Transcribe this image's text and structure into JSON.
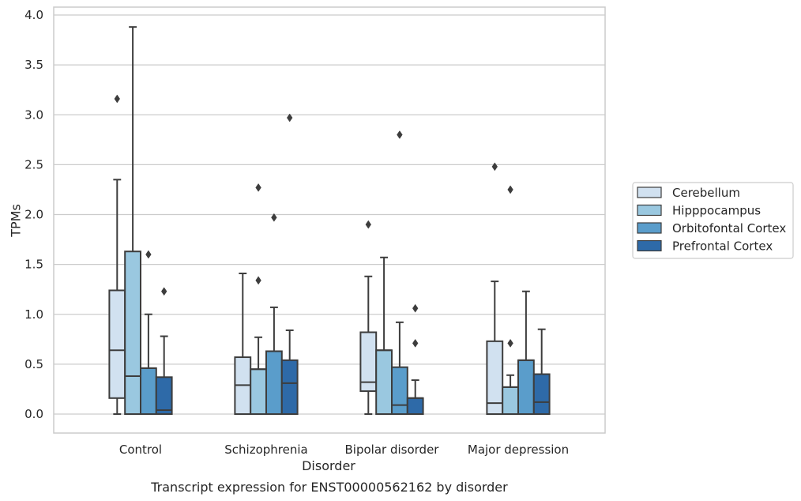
{
  "chart_data": {
    "type": "box",
    "title": "",
    "caption": "Transcript expression for ENST00000562162 by disorder",
    "xlabel": "Disorder",
    "ylabel": "TPMs",
    "ylim": [
      -0.19,
      4.07
    ],
    "yticks": [
      0.0,
      0.5,
      1.0,
      1.5,
      2.0,
      2.5,
      3.0,
      3.5,
      4.0
    ],
    "ytick_labels": [
      "0.0",
      "0.5",
      "1.0",
      "1.5",
      "2.0",
      "2.5",
      "3.0",
      "3.5",
      "4.0"
    ],
    "grid": "horizontal",
    "legend_position": "right",
    "categories": [
      "Control",
      "Schizophrenia",
      "Bipolar disorder",
      "Major depression"
    ],
    "series": [
      {
        "name": "Cerebellum",
        "color": "#d1e1f0",
        "boxes": [
          {
            "whisker_low": 0.0,
            "q1": 0.16,
            "median": 0.64,
            "q3": 1.24,
            "whisker_high": 2.35,
            "outliers": [
              3.16
            ]
          },
          {
            "whisker_low": 0.0,
            "q1": 0.0,
            "median": 0.29,
            "q3": 0.57,
            "whisker_high": 1.41,
            "outliers": []
          },
          {
            "whisker_low": 0.0,
            "q1": 0.23,
            "median": 0.32,
            "q3": 0.82,
            "whisker_high": 1.38,
            "outliers": [
              1.9
            ]
          },
          {
            "whisker_low": 0.0,
            "q1": 0.0,
            "median": 0.11,
            "q3": 0.73,
            "whisker_high": 1.33,
            "outliers": [
              2.48
            ]
          }
        ]
      },
      {
        "name": "Hipppocampus",
        "color": "#9ac8e0",
        "boxes": [
          {
            "whisker_low": 0.0,
            "q1": 0.0,
            "median": 0.38,
            "q3": 1.63,
            "whisker_high": 3.88,
            "outliers": []
          },
          {
            "whisker_low": 0.0,
            "q1": 0.0,
            "median": 0.45,
            "q3": 0.45,
            "whisker_high": 0.77,
            "outliers": [
              1.34,
              2.27
            ]
          },
          {
            "whisker_low": 0.0,
            "q1": 0.0,
            "median": 0.64,
            "q3": 0.64,
            "whisker_high": 1.57,
            "outliers": []
          },
          {
            "whisker_low": 0.0,
            "q1": 0.0,
            "median": 0.27,
            "q3": 0.27,
            "whisker_high": 0.39,
            "outliers": [
              0.71,
              2.25
            ]
          }
        ]
      },
      {
        "name": "Orbitofontal Cortex",
        "color": "#5a9dcb",
        "boxes": [
          {
            "whisker_low": 0.0,
            "q1": 0.0,
            "median": 0.46,
            "q3": 0.46,
            "whisker_high": 1.0,
            "outliers": [
              1.6
            ]
          },
          {
            "whisker_low": 0.0,
            "q1": 0.0,
            "median": 0.63,
            "q3": 0.63,
            "whisker_high": 1.07,
            "outliers": [
              1.97
            ]
          },
          {
            "whisker_low": 0.0,
            "q1": 0.0,
            "median": 0.09,
            "q3": 0.47,
            "whisker_high": 0.92,
            "outliers": [
              2.8
            ]
          },
          {
            "whisker_low": 0.0,
            "q1": 0.0,
            "median": 0.54,
            "q3": 0.54,
            "whisker_high": 1.23,
            "outliers": []
          }
        ]
      },
      {
        "name": "Prefrontal Cortex",
        "color": "#2e6aa8",
        "boxes": [
          {
            "whisker_low": 0.0,
            "q1": 0.0,
            "median": 0.04,
            "q3": 0.37,
            "whisker_high": 0.78,
            "outliers": [
              1.23
            ]
          },
          {
            "whisker_low": 0.0,
            "q1": 0.0,
            "median": 0.31,
            "q3": 0.54,
            "whisker_high": 0.84,
            "outliers": [
              2.97
            ]
          },
          {
            "whisker_low": 0.0,
            "q1": 0.0,
            "median": 0.16,
            "q3": 0.16,
            "whisker_high": 0.34,
            "outliers": [
              0.71,
              1.06
            ]
          },
          {
            "whisker_low": 0.0,
            "q1": 0.0,
            "median": 0.12,
            "q3": 0.4,
            "whisker_high": 0.85,
            "outliers": []
          }
        ]
      }
    ]
  }
}
